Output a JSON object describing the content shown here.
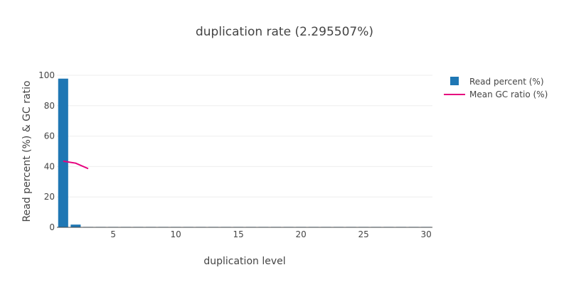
{
  "chart_data": {
    "type": "bar",
    "title": "duplication rate (2.295507%)",
    "xlabel": "duplication level",
    "ylabel": "Read percent (%) & GC ratio",
    "xlim": [
      0.5,
      30.5
    ],
    "ylim": [
      0,
      100
    ],
    "x_ticks": [
      5,
      10,
      15,
      20,
      25,
      30
    ],
    "y_ticks": [
      0,
      20,
      40,
      60,
      80,
      100
    ],
    "grid": true,
    "legend_position": "top-right",
    "series": [
      {
        "name": "Read percent (%)",
        "type": "bar",
        "color": "#1f77b4",
        "x": [
          1,
          2,
          3,
          4,
          5,
          6,
          7,
          8,
          9,
          10,
          11,
          12,
          13,
          14,
          15,
          16,
          17,
          18,
          19,
          20,
          21,
          22,
          23,
          24,
          25,
          26,
          27,
          28,
          29,
          30
        ],
        "values": [
          97.8,
          1.8,
          0.2,
          0.05,
          0.02,
          0.01,
          0.01,
          0.01,
          0.01,
          0.01,
          0.01,
          0.01,
          0.01,
          0.01,
          0.01,
          0.01,
          0.01,
          0.01,
          0.01,
          0.01,
          0.01,
          0.01,
          0.01,
          0.01,
          0.01,
          0.01,
          0.01,
          0.01,
          0.01,
          0.01
        ]
      },
      {
        "name": "Mean GC ratio (%)",
        "type": "line",
        "color": "#e6007e",
        "x": [
          1,
          2,
          3
        ],
        "values": [
          43.5,
          42.2,
          38.6
        ]
      }
    ]
  }
}
